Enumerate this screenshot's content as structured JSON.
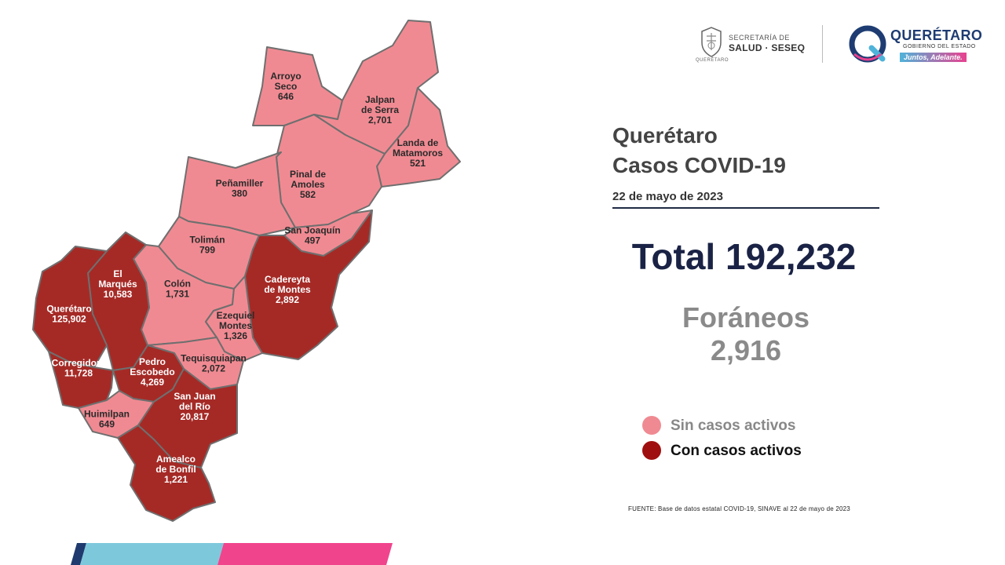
{
  "header": {
    "salud_logo": {
      "icon": "state-emblem",
      "line1": "SECRETARÍA DE",
      "line2": "SALUD · SESEQ",
      "state": "QUERÉTARO"
    },
    "gobierno_logo": {
      "icon": "q-logo",
      "name": "QUERÉTARO",
      "subtitle": "GOBIERNO DEL ESTADO",
      "slogan": "Juntos, Adelante."
    }
  },
  "title_line1": "Querétaro",
  "title_line2": "Casos COVID-19",
  "date": "22 de mayo de 2023",
  "total_label": "Total 192,232",
  "foraneos_label": "Foráneos",
  "foraneos_value": "2,916",
  "legend": [
    {
      "label": "Sin casos activos",
      "color": "#f08a92"
    },
    {
      "label": "Con casos activos",
      "color": "#a52a26"
    }
  ],
  "source": "FUENTE: Base de datos estatal  COVID-19,  SINAVE  al 22 de mayo de 2023",
  "colors": {
    "no_active": "#f08a92",
    "active": "#a52a26",
    "title": "#444444",
    "total": "#1a2345",
    "foraneos": "#8a8a8a",
    "bar_cyan": "#7ec8dc",
    "bar_pink": "#f0448c",
    "bar_navy": "#1f3a6e"
  },
  "municipalities": [
    {
      "id": "arroyo-seco",
      "name": "Arroyo Seco",
      "lines": [
        "Arroyo",
        "Seco"
      ],
      "cases": "646",
      "status": "no_active"
    },
    {
      "id": "jalpan-de-serra",
      "name": "Jalpan de Serra",
      "lines": [
        "Jalpan",
        "de Serra"
      ],
      "cases": "2,701",
      "status": "no_active"
    },
    {
      "id": "landa-de-matamoros",
      "name": "Landa de Matamoros",
      "lines": [
        "Landa de",
        "Matamoros"
      ],
      "cases": "521",
      "status": "no_active"
    },
    {
      "id": "pinal-de-amoles",
      "name": "Pinal de Amoles",
      "lines": [
        "Pinal de",
        "Amoles"
      ],
      "cases": "582",
      "status": "no_active"
    },
    {
      "id": "penamiller",
      "name": "Peñamiller",
      "lines": [
        "Peñamiller"
      ],
      "cases": "380",
      "status": "no_active"
    },
    {
      "id": "san-joaquin",
      "name": "San Joaquín",
      "lines": [
        "San Joaquín"
      ],
      "cases": "497",
      "status": "no_active"
    },
    {
      "id": "toliman",
      "name": "Tolimán",
      "lines": [
        "Tolimán"
      ],
      "cases": "799",
      "status": "no_active"
    },
    {
      "id": "cadereyta-de-montes",
      "name": "Cadereyta de Montes",
      "lines": [
        "Cadereyta",
        "de Montes"
      ],
      "cases": "2,892",
      "status": "active"
    },
    {
      "id": "colon",
      "name": "Colón",
      "lines": [
        "Colón"
      ],
      "cases": "1,731",
      "status": "no_active"
    },
    {
      "id": "el-marques",
      "name": "El Marqués",
      "lines": [
        "El",
        "Marqués"
      ],
      "cases": "10,583",
      "status": "active"
    },
    {
      "id": "queretaro",
      "name": "Querétaro",
      "lines": [
        "Querétaro"
      ],
      "cases": "125,902",
      "status": "active"
    },
    {
      "id": "ezequiel-montes",
      "name": "Ezequiel Montes",
      "lines": [
        "Ezequiel",
        "Montes"
      ],
      "cases": "1,326",
      "status": "no_active"
    },
    {
      "id": "tequisquiapan",
      "name": "Tequisquiapan",
      "lines": [
        "Tequisquiapan"
      ],
      "cases": "2,072",
      "status": "no_active"
    },
    {
      "id": "corregidora",
      "name": "Corregidora",
      "lines": [
        "Corregidora"
      ],
      "cases": "11,728",
      "status": "active"
    },
    {
      "id": "pedro-escobedo",
      "name": "Pedro Escobedo",
      "lines": [
        "Pedro",
        "Escobedo"
      ],
      "cases": "4,269",
      "status": "active"
    },
    {
      "id": "huimilpan",
      "name": "Huimilpan",
      "lines": [
        "Huimilpan"
      ],
      "cases": "649",
      "status": "no_active"
    },
    {
      "id": "san-juan-del-rio",
      "name": "San Juan del Río",
      "lines": [
        "San Juan",
        "del Río"
      ],
      "cases": "20,817",
      "status": "active"
    },
    {
      "id": "amealco-de-bonfil",
      "name": "Amealco de Bonfil",
      "lines": [
        "Amealco",
        "de Bonfil"
      ],
      "cases": "1,221",
      "status": "active"
    }
  ]
}
